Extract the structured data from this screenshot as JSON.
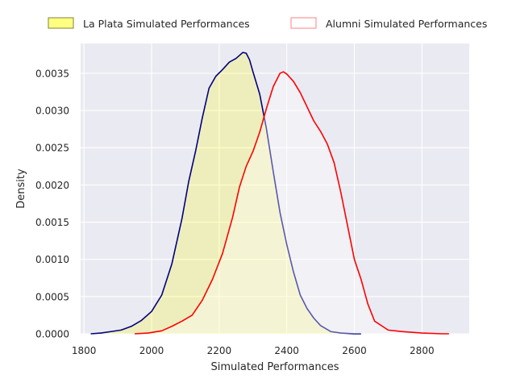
{
  "chart_data": {
    "type": "area",
    "chart_kind": "kde density plot",
    "xlabel": "Simulated Performances",
    "ylabel": "Density",
    "xlim": [
      1790,
      2940
    ],
    "ylim": [
      0,
      0.0039
    ],
    "xticks": [
      1800,
      2000,
      2200,
      2400,
      2600,
      2800
    ],
    "yticks": [
      0,
      0.0005,
      0.001,
      0.0015,
      0.002,
      0.0025,
      0.003,
      0.0035
    ],
    "ytick_labels": [
      "0.0000",
      "0.0005",
      "0.0010",
      "0.0015",
      "0.0020",
      "0.0025",
      "0.0030",
      "0.0035"
    ],
    "grid": true,
    "background": "#eaeaf2",
    "legend_placement": "top, outside plot",
    "series": [
      {
        "name": "La Plata Simulated Performances",
        "line_color": "#000080",
        "fill_color": "#ffff00",
        "fill_alpha": 0.22,
        "legend_fill": "#ffff80",
        "legend_edge": "#808040",
        "x": [
          1820,
          1850,
          1880,
          1910,
          1940,
          1970,
          2000,
          2030,
          2060,
          2090,
          2110,
          2130,
          2150,
          2170,
          2190,
          2210,
          2230,
          2250,
          2270,
          2280,
          2290,
          2300,
          2320,
          2340,
          2360,
          2380,
          2400,
          2420,
          2440,
          2460,
          2480,
          2500,
          2530,
          2560,
          2600,
          2620
        ],
        "y": [
          0,
          1e-05,
          3e-05,
          5e-05,
          0.0001,
          0.00018,
          0.0003,
          0.00052,
          0.00094,
          0.00155,
          0.00205,
          0.00245,
          0.0029,
          0.0033,
          0.00346,
          0.00355,
          0.00365,
          0.0037,
          0.00378,
          0.00377,
          0.00368,
          0.00352,
          0.00322,
          0.00275,
          0.00218,
          0.00163,
          0.0012,
          0.00083,
          0.00052,
          0.00034,
          0.00021,
          0.00011,
          3e-05,
          1e-05,
          0,
          0
        ]
      },
      {
        "name": "Alumni Simulated Performances",
        "line_color": "#ff0000",
        "fill_color": "#ffffff",
        "fill_alpha": 0.35,
        "legend_fill": "#ffffff",
        "legend_edge": "#ff8080",
        "x": [
          1950,
          1990,
          2030,
          2060,
          2090,
          2120,
          2150,
          2180,
          2210,
          2240,
          2260,
          2280,
          2300,
          2320,
          2340,
          2360,
          2380,
          2390,
          2400,
          2420,
          2440,
          2460,
          2480,
          2500,
          2520,
          2540,
          2560,
          2580,
          2600,
          2620,
          2640,
          2660,
          2700,
          2740,
          2800,
          2860,
          2880
        ],
        "y": [
          0,
          1e-05,
          4e-05,
          0.0001,
          0.00017,
          0.00025,
          0.00045,
          0.00073,
          0.00108,
          0.00157,
          0.00197,
          0.00225,
          0.00245,
          0.00271,
          0.00303,
          0.00332,
          0.0035,
          0.00352,
          0.00349,
          0.00339,
          0.00324,
          0.00305,
          0.00286,
          0.00272,
          0.00255,
          0.0023,
          0.0019,
          0.00145,
          0.001,
          0.00073,
          0.0004,
          0.00017,
          5e-05,
          3e-05,
          1e-05,
          0,
          0
        ]
      }
    ]
  }
}
